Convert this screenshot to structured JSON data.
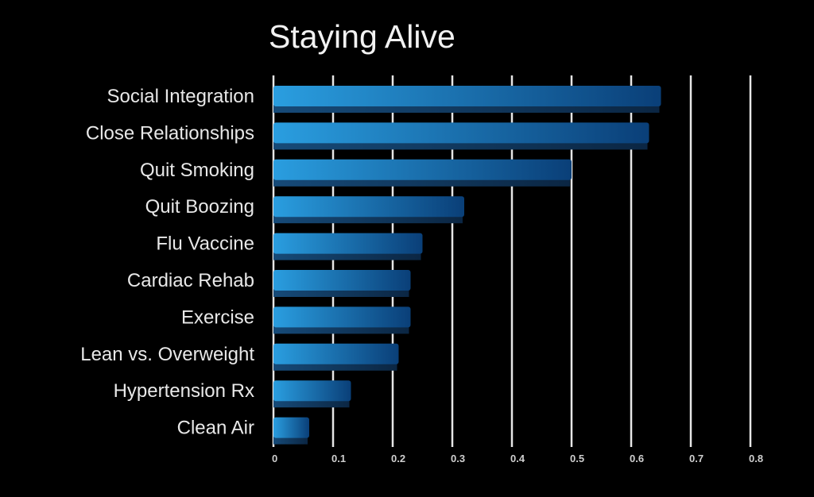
{
  "chart_data": {
    "type": "bar",
    "orientation": "horizontal",
    "title": "Staying Alive",
    "xlabel": "",
    "ylabel": "",
    "categories": [
      "Social Integration",
      "Close Relationships",
      "Quit Smoking",
      "Quit Boozing",
      "Flu Vaccine",
      "Cardiac Rehab",
      "Exercise",
      "Lean vs. Overweight",
      "Hypertension Rx",
      "Clean Air"
    ],
    "values": [
      0.65,
      0.63,
      0.5,
      0.32,
      0.25,
      0.23,
      0.23,
      0.21,
      0.13,
      0.06
    ],
    "xlim": [
      0,
      0.8
    ],
    "xticks": [
      "0",
      "0.1",
      "0.2",
      "0.3",
      "0.4",
      "0.5",
      "0.6",
      "0.7",
      "0.8"
    ],
    "grid": "vertical",
    "legend": "none",
    "colors": {
      "background": "#000000",
      "bar_light": "#2a9ee0",
      "bar_dark": "#0a3f78",
      "bar_bottom": "#0d2c4e",
      "grid": "#e6e6e6"
    }
  }
}
